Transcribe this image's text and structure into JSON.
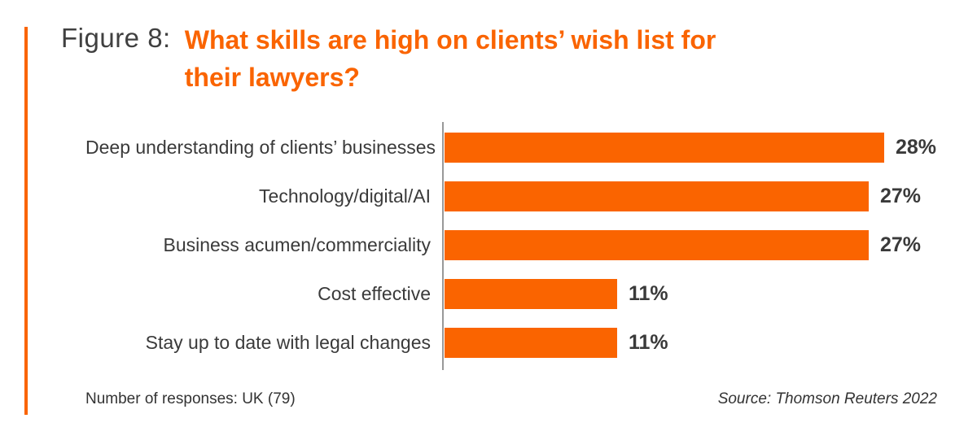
{
  "page": {
    "figure_label": "Figure 8:",
    "title_line1": "What skills are high on clients’ wish list for",
    "title_line2": "their lawyers?",
    "footer_left": "Number of responses: UK (79)",
    "footer_right": "Source: Thomson Reuters 2022"
  },
  "colors": {
    "accent_orange": "#FA6400",
    "axis_gray": "#999999",
    "text_dark": "#3a3a3a"
  },
  "chart_data": {
    "type": "bar",
    "orientation": "horizontal",
    "title": "What skills are high on clients’ wish list for their lawyers?",
    "categories": [
      "Deep understanding of clients’ businesses",
      "Technology/digital/AI",
      "Business acumen/commerciality",
      "Cost effective",
      "Stay up to date with legal changes"
    ],
    "values": [
      28,
      27,
      27,
      11,
      11
    ],
    "value_suffix": "%",
    "xlabel": "",
    "ylabel": "",
    "xlim": [
      0,
      30
    ],
    "grid": false,
    "legend": "none",
    "bar_color": "#FA6400",
    "note": "Number of responses: UK (79)",
    "source": "Source: Thomson Reuters 2022"
  }
}
